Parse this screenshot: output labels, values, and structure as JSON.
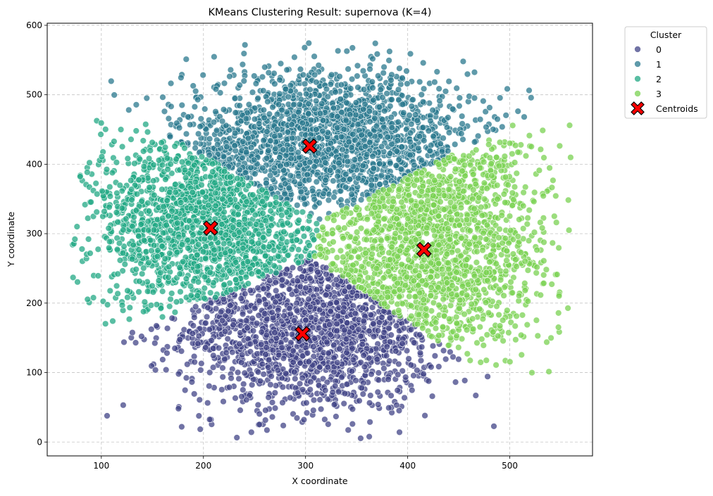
{
  "chart_data": {
    "type": "scatter",
    "title": "KMeans Clustering Result: supernova (K=4)",
    "xlabel": "X coordinate",
    "ylabel": "Y coordinate",
    "xlim": [
      47,
      581
    ],
    "ylim": [
      -20,
      603
    ],
    "xticks": [
      100,
      200,
      300,
      400,
      500
    ],
    "yticks": [
      0,
      100,
      200,
      300,
      400,
      500,
      600
    ],
    "grid": true,
    "legend": {
      "title": "Cluster",
      "placement": "outside-top-right",
      "entries": [
        "0",
        "1",
        "2",
        "3",
        "Centroids"
      ]
    },
    "series": [
      {
        "name": "0",
        "color": "#414487",
        "approx_points": 2000,
        "extent_x": [
          157,
          462
        ],
        "extent_y": [
          7,
          270
        ]
      },
      {
        "name": "1",
        "color": "#2a788e",
        "approx_points": 2000,
        "extent_x": [
          148,
          500
        ],
        "extent_y": [
          385,
          574
        ]
      },
      {
        "name": "2",
        "color": "#22a884",
        "approx_points": 2000,
        "extent_x": [
          72,
          318
        ],
        "extent_y": [
          168,
          457
        ]
      },
      {
        "name": "3",
        "color": "#7ad151",
        "approx_points": 2000,
        "extent_x": [
          313,
          557
        ],
        "extent_y": [
          132,
          513
        ]
      }
    ],
    "centroids": {
      "name": "Centroids",
      "color": "#ff0000",
      "marker": "X",
      "points": [
        {
          "cluster": "0",
          "x": 297,
          "y": 156
        },
        {
          "cluster": "1",
          "x": 304,
          "y": 426
        },
        {
          "cluster": "2",
          "x": 207,
          "y": 308
        },
        {
          "cluster": "3",
          "x": 416,
          "y": 277
        }
      ]
    }
  }
}
